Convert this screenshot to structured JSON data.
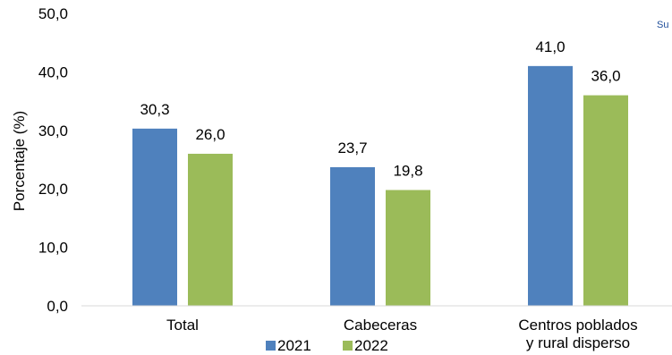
{
  "corner_text": "Su",
  "chart_data": {
    "type": "bar",
    "categories": [
      [
        "Total"
      ],
      [
        "Cabeceras"
      ],
      [
        "Centros poblados",
        "y rural disperso"
      ]
    ],
    "series": [
      {
        "name": "2021",
        "color": "#4f81bd",
        "values": [
          30.3,
          23.7,
          41.0
        ]
      },
      {
        "name": "2022",
        "color": "#9bbb59",
        "values": [
          26.0,
          19.8,
          36.0
        ]
      }
    ],
    "value_labels": [
      [
        "30,3",
        "23,7",
        "41,0"
      ],
      [
        "26,0",
        "19,8",
        "36,0"
      ]
    ],
    "ylabel": "Porcentaje (%)",
    "ylim": [
      0,
      50
    ],
    "yticks": [
      0,
      10,
      20,
      30,
      40,
      50
    ],
    "ytick_labels": [
      "0,0",
      "10,0",
      "20,0",
      "30,0",
      "40,0",
      "50,0"
    ],
    "grid": false,
    "legend": "bottom"
  }
}
